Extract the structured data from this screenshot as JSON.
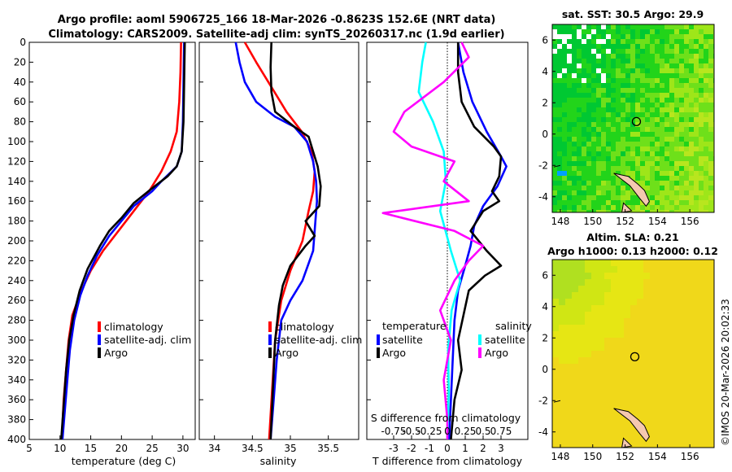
{
  "title_line1": "Argo profile: aoml 5906725_166 18-Mar-2026 -0.8623S 152.6E (NRT data)",
  "title_line2": "Climatology: CARS2009. Satellite-adj clim: synTS_20260317.nc (1.9d earlier)",
  "sst_title": "sat. SST: 30.5 Argo: 29.9",
  "sla_title_line1": "Altim. SLA: 0.21",
  "sla_title_line2": "Argo h1000: 0.13 h2000: 0.12",
  "stamp": "©IMOS 20-Mar-2026 20:02:33",
  "colors": {
    "climatology": "#ff0000",
    "satellite": "#0000ff",
    "argo": "#000000",
    "sat_s": "#00ffff",
    "argo_s": "#ff00ff"
  },
  "chart_data": [
    {
      "type": "line",
      "id": "temperature",
      "xlabel": "temperature (deg C)",
      "ylabel": "depth",
      "xlim": [
        5,
        32
      ],
      "ylim": [
        400,
        0
      ],
      "xticks": [
        "5",
        "10",
        "15",
        "20",
        "25",
        "30"
      ],
      "yticks": [
        "0",
        "20",
        "40",
        "60",
        "80",
        "100",
        "120",
        "140",
        "160",
        "180",
        "200",
        "220",
        "240",
        "260",
        "280",
        "300",
        "320",
        "340",
        "360",
        "380",
        "400"
      ],
      "legend": [
        "climatology",
        "satellite-adj. clim",
        "Argo"
      ],
      "series": [
        {
          "name": "climatology",
          "points": [
            [
              29.7,
              0
            ],
            [
              29.6,
              30
            ],
            [
              29.4,
              60
            ],
            [
              29.0,
              90
            ],
            [
              28.0,
              110
            ],
            [
              26.5,
              130
            ],
            [
              24.5,
              150
            ],
            [
              22.0,
              170
            ],
            [
              19.5,
              190
            ],
            [
              17.0,
              210
            ],
            [
              15.0,
              230
            ],
            [
              13.5,
              250
            ],
            [
              12.0,
              275
            ],
            [
              11.4,
              300
            ],
            [
              11.0,
              330
            ],
            [
              10.6,
              360
            ],
            [
              10.3,
              400
            ]
          ]
        },
        {
          "name": "satellite-adj. clim",
          "points": [
            [
              30.2,
              0
            ],
            [
              30.1,
              40
            ],
            [
              30.0,
              80
            ],
            [
              29.8,
              110
            ],
            [
              29.0,
              125
            ],
            [
              26.5,
              140
            ],
            [
              25.0,
              150
            ],
            [
              22.0,
              165
            ],
            [
              20.0,
              180
            ],
            [
              18.0,
              195
            ],
            [
              16.0,
              215
            ],
            [
              14.5,
              235
            ],
            [
              13.3,
              255
            ],
            [
              12.3,
              280
            ],
            [
              11.6,
              310
            ],
            [
              11.2,
              340
            ],
            [
              10.8,
              370
            ],
            [
              10.4,
              400
            ]
          ]
        },
        {
          "name": "Argo",
          "points": [
            [
              30.3,
              0
            ],
            [
              30.2,
              40
            ],
            [
              30.1,
              80
            ],
            [
              29.8,
              110
            ],
            [
              29.0,
              125
            ],
            [
              27.5,
              135
            ],
            [
              25.0,
              147
            ],
            [
              22.0,
              162
            ],
            [
              20.0,
              177
            ],
            [
              18.0,
              190
            ],
            [
              16.5,
              205
            ],
            [
              14.5,
              228
            ],
            [
              13.2,
              250
            ],
            [
              12.2,
              275
            ],
            [
              11.5,
              300
            ],
            [
              11.0,
              330
            ],
            [
              10.6,
              365
            ],
            [
              10.2,
              400
            ]
          ]
        }
      ]
    },
    {
      "type": "line",
      "id": "salinity",
      "xlabel": "salinity",
      "xlim": [
        33.8,
        35.9
      ],
      "ylim": [
        400,
        0
      ],
      "xticks": [
        "34",
        "34.5",
        "35",
        "35.5"
      ],
      "legend": [
        "climatology",
        "satellite-adj. clim",
        "Argo"
      ],
      "series": [
        {
          "name": "climatology",
          "points": [
            [
              34.4,
              0
            ],
            [
              34.55,
              20
            ],
            [
              34.75,
              45
            ],
            [
              34.95,
              70
            ],
            [
              35.15,
              90
            ],
            [
              35.28,
              110
            ],
            [
              35.32,
              130
            ],
            [
              35.3,
              150
            ],
            [
              35.24,
              170
            ],
            [
              35.16,
              200
            ],
            [
              35.0,
              230
            ],
            [
              34.88,
              260
            ],
            [
              34.8,
              300
            ],
            [
              34.76,
              350
            ],
            [
              34.72,
              400
            ]
          ]
        },
        {
          "name": "satellite-adj. clim",
          "points": [
            [
              34.28,
              0
            ],
            [
              34.33,
              20
            ],
            [
              34.4,
              40
            ],
            [
              34.55,
              60
            ],
            [
              34.8,
              75
            ],
            [
              35.05,
              85
            ],
            [
              35.22,
              100
            ],
            [
              35.3,
              120
            ],
            [
              35.34,
              140
            ],
            [
              35.35,
              160
            ],
            [
              35.33,
              180
            ],
            [
              35.3,
              210
            ],
            [
              35.16,
              240
            ],
            [
              35.0,
              260
            ],
            [
              34.88,
              280
            ],
            [
              34.82,
              320
            ],
            [
              34.78,
              360
            ],
            [
              34.74,
              400
            ]
          ]
        },
        {
          "name": "Argo",
          "points": [
            [
              34.75,
              0
            ],
            [
              34.74,
              25
            ],
            [
              34.75,
              50
            ],
            [
              34.8,
              70
            ],
            [
              35.05,
              85
            ],
            [
              35.24,
              95
            ],
            [
              35.3,
              110
            ],
            [
              35.36,
              125
            ],
            [
              35.4,
              145
            ],
            [
              35.38,
              165
            ],
            [
              35.2,
              180
            ],
            [
              35.32,
              195
            ],
            [
              35.2,
              205
            ],
            [
              35.1,
              215
            ],
            [
              35.0,
              225
            ],
            [
              34.9,
              245
            ],
            [
              34.85,
              265
            ],
            [
              34.8,
              300
            ],
            [
              34.77,
              350
            ],
            [
              34.74,
              400
            ]
          ]
        }
      ]
    },
    {
      "type": "line",
      "id": "differences",
      "xlabel": "T difference from climatology",
      "xlim": [
        -4.5,
        4.5
      ],
      "ylim": [
        400,
        0
      ],
      "xticks": [
        "-3",
        "-2",
        "-1",
        "0",
        "1",
        "2",
        "3"
      ],
      "top_xlabel": "S difference from climatology",
      "top_xticks": [
        "-0.75",
        "-0.5",
        "-0.25",
        "0",
        "0.25",
        "0.5",
        "0.75"
      ],
      "legend_headers": [
        "temperature",
        "salinity"
      ],
      "legend": [
        "satellite",
        "Argo",
        "satellite",
        "Argo"
      ],
      "series": [
        {
          "name": "T satellite",
          "points": [
            [
              0.6,
              0
            ],
            [
              0.9,
              30
            ],
            [
              1.4,
              60
            ],
            [
              2.2,
              90
            ],
            [
              3.0,
              115
            ],
            [
              3.3,
              125
            ],
            [
              2.8,
              145
            ],
            [
              2.0,
              165
            ],
            [
              1.5,
              185
            ],
            [
              1.3,
              205
            ],
            [
              1.0,
              225
            ],
            [
              0.6,
              250
            ],
            [
              0.4,
              280
            ],
            [
              0.3,
              320
            ],
            [
              0.2,
              360
            ],
            [
              0.1,
              400
            ]
          ]
        },
        {
          "name": "T Argo",
          "points": [
            [
              0.6,
              0
            ],
            [
              0.6,
              30
            ],
            [
              0.8,
              60
            ],
            [
              1.5,
              85
            ],
            [
              2.6,
              105
            ],
            [
              3.0,
              115
            ],
            [
              2.9,
              135
            ],
            [
              2.5,
              150
            ],
            [
              2.9,
              160
            ],
            [
              2.0,
              170
            ],
            [
              1.3,
              190
            ],
            [
              2.2,
              210
            ],
            [
              3.0,
              225
            ],
            [
              2.1,
              235
            ],
            [
              1.2,
              250
            ],
            [
              0.9,
              275
            ],
            [
              0.6,
              300
            ],
            [
              0.8,
              330
            ],
            [
              0.4,
              360
            ],
            [
              0.2,
              400
            ]
          ]
        },
        {
          "name": "S satellite",
          "points": [
            [
              -0.3,
              0
            ],
            [
              -0.35,
              20
            ],
            [
              -0.4,
              50
            ],
            [
              -0.2,
              80
            ],
            [
              -0.05,
              110
            ],
            [
              -0.02,
              140
            ],
            [
              -0.1,
              170
            ],
            [
              0.05,
              210
            ],
            [
              0.18,
              240
            ],
            [
              0.06,
              270
            ],
            [
              0.01,
              310
            ],
            [
              0.02,
              350
            ],
            [
              0.0,
              400
            ]
          ]
        },
        {
          "name": "S Argo",
          "points": [
            [
              0.2,
              0
            ],
            [
              0.3,
              15
            ],
            [
              -0.05,
              40
            ],
            [
              -0.6,
              70
            ],
            [
              -0.75,
              90
            ],
            [
              -0.5,
              105
            ],
            [
              0.1,
              120
            ],
            [
              -0.05,
              140
            ],
            [
              0.3,
              160
            ],
            [
              -0.9,
              172
            ],
            [
              0.1,
              190
            ],
            [
              0.5,
              205
            ],
            [
              0.3,
              220
            ],
            [
              0.1,
              240
            ],
            [
              -0.1,
              270
            ],
            [
              0.05,
              300
            ],
            [
              -0.05,
              340
            ],
            [
              0.0,
              380
            ],
            [
              0.0,
              400
            ]
          ]
        }
      ]
    },
    {
      "type": "heatmap",
      "id": "sst_map",
      "title": "sat. SST: 30.5 Argo: 29.9",
      "xticks": [
        "148",
        "150",
        "152",
        "154",
        "156"
      ],
      "yticks": [
        "6",
        "4",
        "2",
        "0",
        "-2",
        "-4"
      ],
      "xlim": [
        147.5,
        157.5
      ],
      "ylim": [
        -5,
        7
      ],
      "float_position": [
        152.7,
        0.8
      ]
    },
    {
      "type": "heatmap",
      "id": "sla_map",
      "title": "Altim. SLA: 0.21",
      "subtitle": "Argo h1000: 0.13 h2000: 0.12",
      "xticks": [
        "148",
        "150",
        "152",
        "154",
        "156"
      ],
      "yticks": [
        "6",
        "4",
        "2",
        "0",
        "-2",
        "-4"
      ],
      "xlim": [
        147.5,
        157.5
      ],
      "ylim": [
        -5,
        7
      ],
      "float_position": [
        152.6,
        0.8
      ]
    }
  ]
}
